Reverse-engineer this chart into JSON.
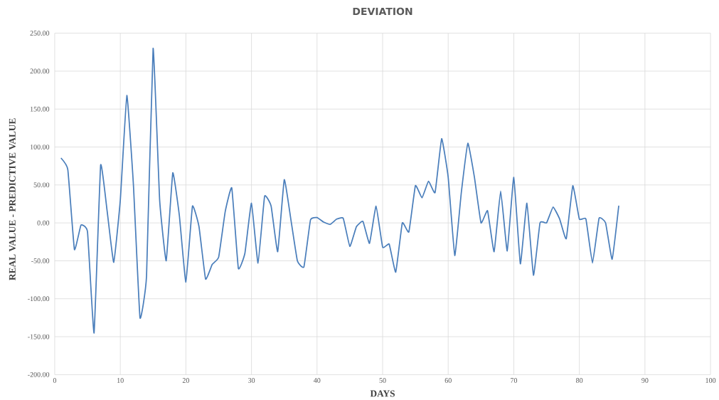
{
  "chart_data": {
    "type": "line",
    "title": "DEVIATION",
    "xlabel": "DAYS",
    "ylabel": "REAL VALUE - PREDICTIVE VALUE",
    "x": [
      1,
      2,
      3,
      4,
      5,
      6,
      7,
      8,
      9,
      10,
      11,
      12,
      13,
      14,
      15,
      16,
      17,
      18,
      19,
      20,
      21,
      22,
      23,
      24,
      25,
      26,
      27,
      28,
      29,
      30,
      31,
      32,
      33,
      34,
      35,
      36,
      37,
      38,
      39,
      40,
      41,
      42,
      43,
      44,
      45,
      46,
      47,
      48,
      49,
      50,
      51,
      52,
      53,
      54,
      55,
      56,
      57,
      58,
      59,
      60,
      61,
      62,
      63,
      64,
      65,
      66,
      67,
      68,
      69,
      70,
      71,
      72,
      73,
      74,
      75,
      76,
      77,
      78,
      79,
      80,
      81,
      82,
      83,
      84,
      85,
      86
    ],
    "series": [
      {
        "color": "#4a7ebb",
        "values": [
          85,
          70,
          -35,
          -3,
          -12,
          -145,
          76,
          15,
          -52,
          30,
          168,
          50,
          -125,
          -70,
          230,
          30,
          -50,
          66,
          10,
          -78,
          22,
          -5,
          -74,
          -55,
          -45,
          15,
          46,
          -60,
          -40,
          26,
          -53,
          35,
          22,
          -38,
          57,
          5,
          -50,
          -58,
          4,
          7,
          1,
          -2,
          5,
          6,
          -31,
          -5,
          2,
          -27,
          22,
          -32,
          -28,
          -65,
          0,
          -12,
          49,
          33,
          55,
          40,
          111,
          60,
          -43,
          40,
          105,
          60,
          0,
          16,
          -38,
          42,
          -37,
          60,
          -54,
          26,
          -69,
          0,
          0,
          21,
          5,
          -21,
          49,
          5,
          5,
          -53,
          6,
          0,
          -48,
          22
        ]
      }
    ],
    "xlim": [
      0,
      100
    ],
    "xticks": [
      0,
      10,
      20,
      30,
      40,
      50,
      60,
      70,
      80,
      90,
      100
    ],
    "ylim": [
      -200,
      250
    ],
    "yticks": [
      {
        "value": -200,
        "label": "-200.00"
      },
      {
        "value": -150,
        "label": "-150.00"
      },
      {
        "value": -100,
        "label": "-100.00"
      },
      {
        "value": -50,
        "label": "-50.00"
      },
      {
        "value": 0,
        "label": "0.00"
      },
      {
        "value": 50,
        "label": "50.00"
      },
      {
        "value": 100,
        "label": "100.00"
      },
      {
        "value": 150,
        "label": "150.00"
      },
      {
        "value": 200,
        "label": "200.00"
      },
      {
        "value": 250,
        "label": "250.00"
      }
    ],
    "grid": true,
    "legend": false,
    "marker": "none",
    "line_style": "solid"
  }
}
